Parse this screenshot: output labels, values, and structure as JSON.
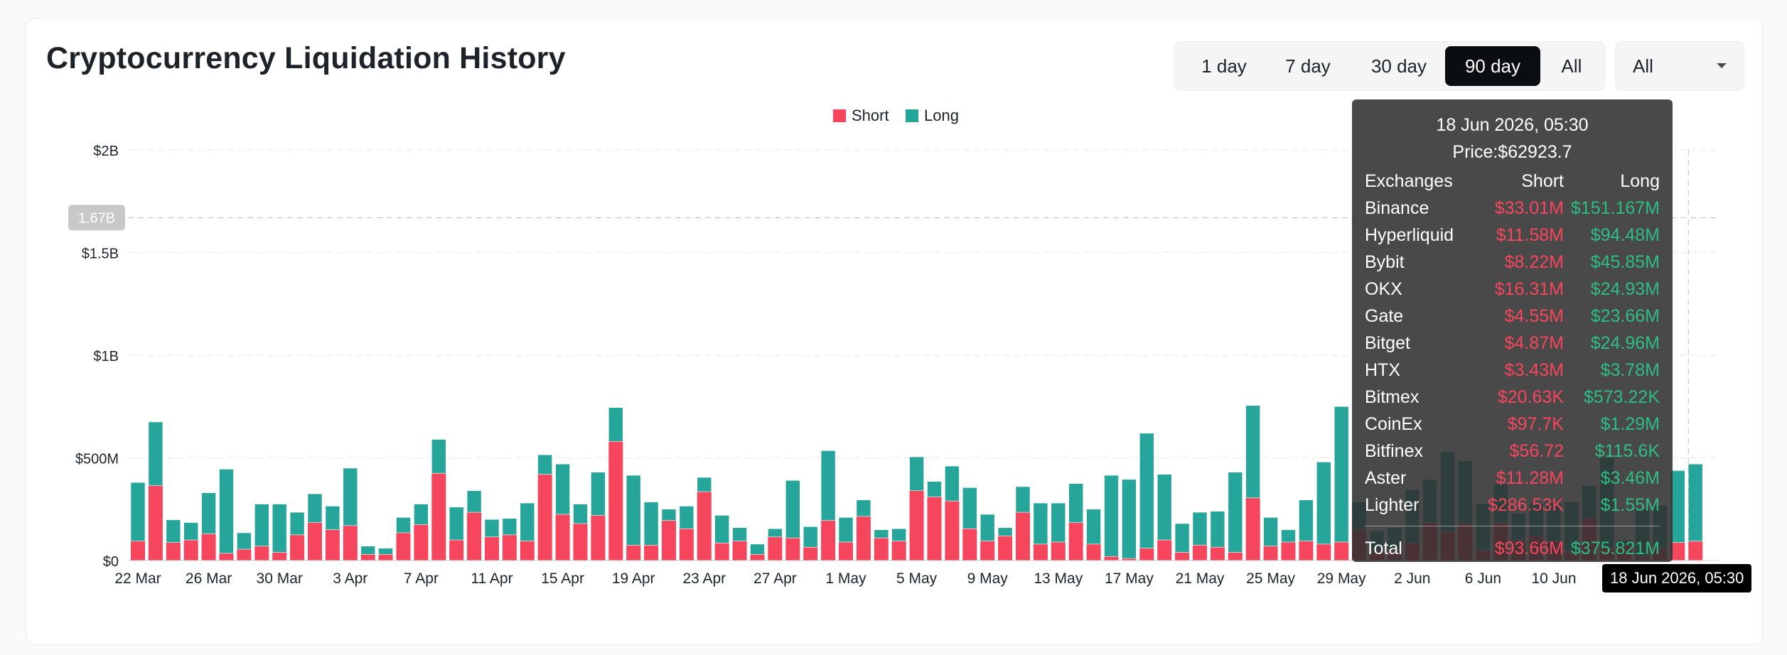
{
  "page": {
    "title": "Cryptocurrency Liquidation History"
  },
  "range_buttons": [
    "1 day",
    "7 day",
    "30 day",
    "90 day",
    "All"
  ],
  "active_range": "90 day",
  "exchange_select": {
    "value": "All"
  },
  "colors": {
    "short": "#f6465d",
    "long": "#26a69a",
    "active_button": "#0b0e11"
  },
  "chart_data": {
    "type": "bar",
    "stacked": true,
    "title": "",
    "xlabel": "",
    "ylabel": "",
    "ylim": [
      0,
      2000000000
    ],
    "y_ticks": [
      {
        "value": 0,
        "label": "$0"
      },
      {
        "value": 500000000,
        "label": "$500M"
      },
      {
        "value": 1000000000,
        "label": "$1B"
      },
      {
        "value": 1500000000,
        "label": "$1.5B"
      },
      {
        "value": 2000000000,
        "label": "$2B"
      }
    ],
    "x_tick_labels": [
      "22 Mar",
      "26 Mar",
      "30 Mar",
      "3 Apr",
      "7 Apr",
      "11 Apr",
      "15 Apr",
      "19 Apr",
      "23 Apr",
      "27 Apr",
      "1 May",
      "5 May",
      "9 May",
      "13 May",
      "17 May",
      "21 May",
      "25 May",
      "29 May",
      "2 Jun",
      "6 Jun",
      "10 Jun"
    ],
    "legend": {
      "position": "top-center",
      "entries": [
        "Short",
        "Long"
      ]
    },
    "grid": true,
    "crosshair_y_label": "1.67B",
    "crosshair_y_value": 1670000000,
    "crosshair_x_label": "18 Jun 2026, 05:30",
    "categories": [
      "22 Mar",
      "23 Mar",
      "24 Mar",
      "25 Mar",
      "26 Mar",
      "27 Mar",
      "28 Mar",
      "29 Mar",
      "30 Mar",
      "31 Mar",
      "1 Apr",
      "2 Apr",
      "3 Apr",
      "4 Apr",
      "5 Apr",
      "6 Apr",
      "7 Apr",
      "8 Apr",
      "9 Apr",
      "10 Apr",
      "11 Apr",
      "12 Apr",
      "13 Apr",
      "14 Apr",
      "15 Apr",
      "16 Apr",
      "17 Apr",
      "18 Apr",
      "19 Apr",
      "20 Apr",
      "21 Apr",
      "22 Apr",
      "23 Apr",
      "24 Apr",
      "25 Apr",
      "26 Apr",
      "27 Apr",
      "28 Apr",
      "29 Apr",
      "30 Apr",
      "1 May",
      "2 May",
      "3 May",
      "4 May",
      "5 May",
      "6 May",
      "7 May",
      "8 May",
      "9 May",
      "10 May",
      "11 May",
      "12 May",
      "13 May",
      "14 May",
      "15 May",
      "16 May",
      "17 May",
      "18 May",
      "19 May",
      "20 May",
      "21 May",
      "22 May",
      "23 May",
      "24 May",
      "25 May",
      "26 May",
      "27 May",
      "28 May",
      "29 May",
      "30 May",
      "31 May",
      "1 Jun",
      "2 Jun",
      "3 Jun",
      "4 Jun",
      "5 Jun",
      "6 Jun",
      "7 Jun",
      "8 Jun",
      "9 Jun",
      "10 Jun",
      "11 Jun",
      "12 Jun",
      "13 Jun",
      "14 Jun",
      "15 Jun",
      "16 Jun",
      "17 Jun",
      "18 Jun"
    ],
    "series": [
      {
        "name": "Short",
        "values": [
          95,
          365,
          88,
          100,
          130,
          35,
          55,
          70,
          40,
          125,
          185,
          150,
          170,
          30,
          30,
          135,
          175,
          425,
          100,
          235,
          115,
          125,
          95,
          420,
          225,
          180,
          220,
          580,
          75,
          75,
          195,
          155,
          335,
          85,
          95,
          30,
          115,
          110,
          65,
          195,
          90,
          215,
          110,
          95,
          340,
          310,
          290,
          155,
          95,
          120,
          235,
          80,
          90,
          185,
          80,
          20,
          10,
          60,
          100,
          40,
          75,
          65,
          40,
          305,
          70,
          90,
          95,
          80,
          90,
          150,
          45,
          50,
          85,
          185,
          140,
          180,
          50,
          185,
          100,
          120,
          95,
          45,
          205,
          60,
          70,
          20,
          60,
          88,
          94
        ]
      },
      {
        "name": "Long",
        "values": [
          285,
          310,
          110,
          85,
          200,
          410,
          80,
          205,
          235,
          110,
          140,
          115,
          280,
          40,
          30,
          75,
          100,
          165,
          160,
          105,
          85,
          80,
          185,
          95,
          245,
          95,
          210,
          165,
          340,
          210,
          55,
          110,
          70,
          135,
          65,
          50,
          40,
          280,
          100,
          340,
          120,
          80,
          40,
          60,
          165,
          75,
          170,
          200,
          130,
          40,
          125,
          200,
          190,
          190,
          170,
          395,
          385,
          560,
          320,
          140,
          160,
          175,
          390,
          450,
          140,
          60,
          200,
          400,
          660,
          135,
          100,
          110,
          260,
          210,
          390,
          305,
          225,
          185,
          130,
          155,
          185,
          240,
          160,
          440,
          30,
          230,
          210,
          350,
          376
        ]
      }
    ]
  },
  "tooltip": {
    "date": "18 Jun 2026, 05:30",
    "price": "Price:$62923.7",
    "header": {
      "name": "Exchanges",
      "short": "Short",
      "long": "Long"
    },
    "rows": [
      {
        "name": "Binance",
        "short": "$33.01M",
        "long": "$151.167M"
      },
      {
        "name": "Hyperliquid",
        "short": "$11.58M",
        "long": "$94.48M"
      },
      {
        "name": "Bybit",
        "short": "$8.22M",
        "long": "$45.85M"
      },
      {
        "name": "OKX",
        "short": "$16.31M",
        "long": "$24.93M"
      },
      {
        "name": "Gate",
        "short": "$4.55M",
        "long": "$23.66M"
      },
      {
        "name": "Bitget",
        "short": "$4.87M",
        "long": "$24.96M"
      },
      {
        "name": "HTX",
        "short": "$3.43M",
        "long": "$3.78M"
      },
      {
        "name": "Bitmex",
        "short": "$20.63K",
        "long": "$573.22K"
      },
      {
        "name": "CoinEx",
        "short": "$97.7K",
        "long": "$1.29M"
      },
      {
        "name": "Bitfinex",
        "short": "$56.72",
        "long": "$115.6K"
      },
      {
        "name": "Aster",
        "short": "$11.28M",
        "long": "$3.46M"
      },
      {
        "name": "Lighter",
        "short": "$286.53K",
        "long": "$1.55M"
      }
    ],
    "total": {
      "name": "Total",
      "short": "$93.66M",
      "long": "$375.821M"
    }
  }
}
